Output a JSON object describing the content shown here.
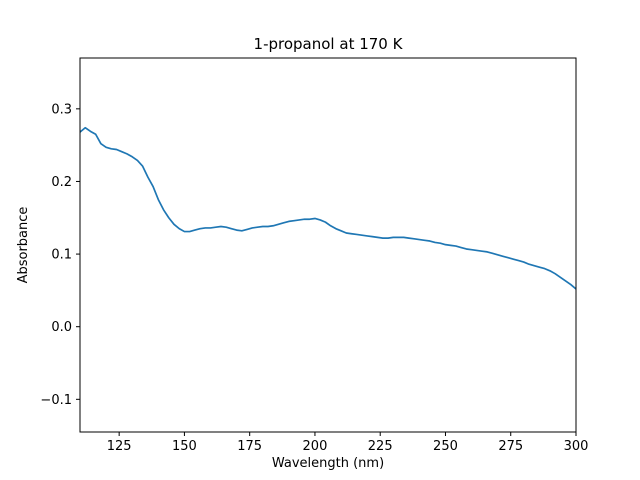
{
  "chart_data": {
    "type": "line",
    "title": "1-propanol at 170 K",
    "xlabel": "Wavelength (nm)",
    "ylabel": "Absorbance",
    "xlim": [
      110,
      300
    ],
    "ylim": [
      -0.145,
      0.37
    ],
    "xticks": [
      125,
      150,
      175,
      200,
      225,
      250,
      275,
      300
    ],
    "yticks": [
      -0.1,
      0.0,
      0.1,
      0.2,
      0.3
    ],
    "ytick_labels": [
      "−0.1",
      "0.0",
      "0.1",
      "0.2",
      "0.3"
    ],
    "grid": false,
    "line_color": "#1f77b4",
    "series": [
      {
        "x": [
          110,
          112,
          114,
          116,
          118,
          120,
          122,
          124,
          126,
          128,
          130,
          132,
          134,
          136,
          138,
          140,
          142,
          144,
          146,
          148,
          150,
          152,
          154,
          156,
          158,
          160,
          162,
          164,
          166,
          168,
          170,
          172,
          174,
          176,
          178,
          180,
          182,
          184,
          186,
          188,
          190,
          192,
          194,
          196,
          198,
          200,
          202,
          204,
          206,
          208,
          210,
          212,
          214,
          216,
          218,
          220,
          222,
          224,
          226,
          228,
          230,
          232,
          234,
          236,
          238,
          240,
          242,
          244,
          246,
          248,
          250,
          252,
          254,
          256,
          258,
          260,
          262,
          264,
          266,
          268,
          270,
          272,
          274,
          276,
          278,
          280,
          282,
          284,
          286,
          288,
          290,
          292,
          294,
          296,
          298,
          300
        ],
        "y": [
          0.268,
          0.274,
          0.269,
          0.265,
          0.252,
          0.247,
          0.245,
          0.244,
          0.241,
          0.238,
          0.234,
          0.229,
          0.221,
          0.206,
          0.193,
          0.175,
          0.161,
          0.15,
          0.141,
          0.135,
          0.131,
          0.131,
          0.133,
          0.135,
          0.136,
          0.136,
          0.137,
          0.138,
          0.137,
          0.135,
          0.133,
          0.132,
          0.134,
          0.136,
          0.137,
          0.138,
          0.138,
          0.139,
          0.141,
          0.143,
          0.145,
          0.146,
          0.147,
          0.148,
          0.148,
          0.149,
          0.147,
          0.144,
          0.139,
          0.135,
          0.132,
          0.129,
          0.128,
          0.127,
          0.126,
          0.125,
          0.124,
          0.123,
          0.122,
          0.122,
          0.123,
          0.123,
          0.123,
          0.122,
          0.121,
          0.12,
          0.119,
          0.118,
          0.116,
          0.115,
          0.113,
          0.112,
          0.111,
          0.109,
          0.107,
          0.106,
          0.105,
          0.104,
          0.103,
          0.101,
          0.099,
          0.097,
          0.095,
          0.093,
          0.091,
          0.089,
          0.086,
          0.084,
          0.082,
          0.08,
          0.077,
          0.073,
          0.068,
          0.063,
          0.058,
          0.052
        ]
      }
    ]
  }
}
